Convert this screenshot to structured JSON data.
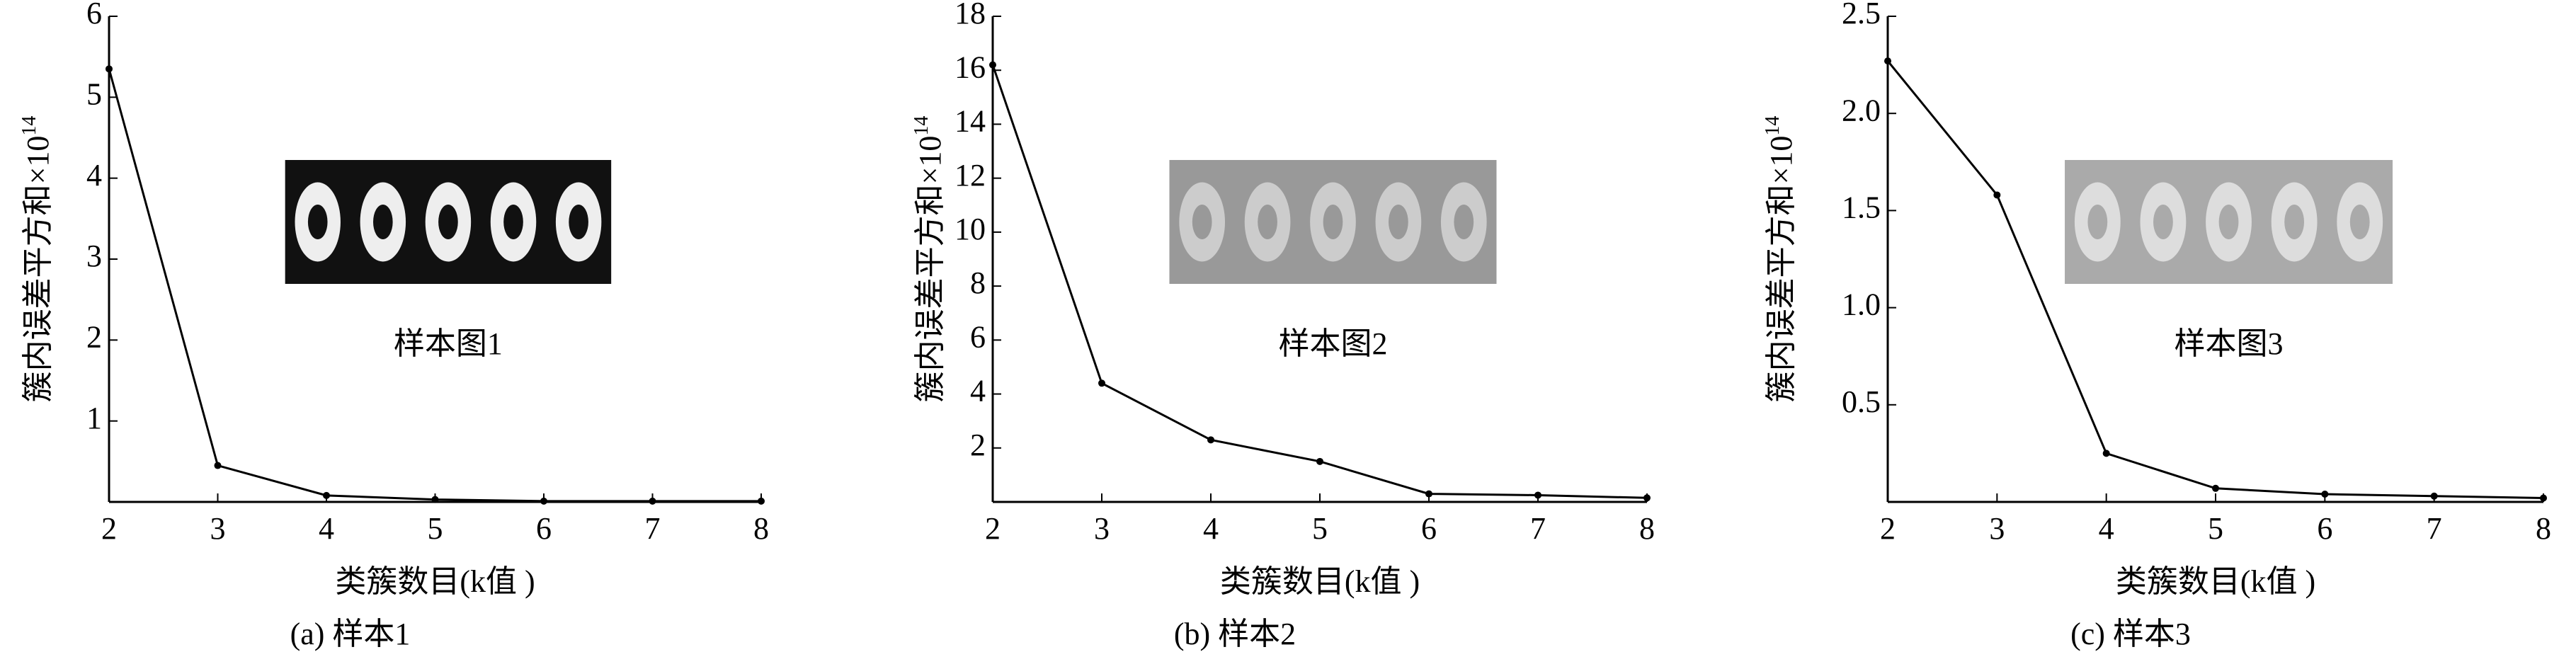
{
  "chart_data": [
    {
      "type": "line",
      "ylabel": "簇内误差平方和×10",
      "ylabel_exponent": "14",
      "xlabel": "类簇数目(k值 )",
      "caption": "(a) 样本1",
      "inset_label": "样本图1",
      "x": [
        2,
        3,
        4,
        5,
        6,
        7,
        8
      ],
      "values": [
        5.35,
        0.45,
        0.08,
        0.03,
        0.01,
        0.01,
        0.01
      ],
      "color": "#000000",
      "xlim": [
        2,
        8
      ],
      "xticks": [
        2,
        3,
        4,
        5,
        6,
        7,
        8
      ],
      "ylim": [
        0,
        6
      ],
      "yticks": [
        1,
        2,
        3,
        4,
        5,
        6
      ]
    },
    {
      "type": "line",
      "ylabel": "簇内误差平方和×10",
      "ylabel_exponent": "14",
      "xlabel": "类簇数目(k值 )",
      "caption": "(b) 样本2",
      "inset_label": "样本图2",
      "x": [
        2,
        3,
        4,
        5,
        6,
        7,
        8
      ],
      "values": [
        16.2,
        4.4,
        2.3,
        1.5,
        0.3,
        0.25,
        0.15
      ],
      "color": "#000000",
      "xlim": [
        2,
        8
      ],
      "xticks": [
        2,
        3,
        4,
        5,
        6,
        7,
        8
      ],
      "ylim": [
        0,
        18
      ],
      "yticks": [
        2,
        4,
        6,
        8,
        10,
        12,
        14,
        16,
        18
      ]
    },
    {
      "type": "line",
      "ylabel": "簇内误差平方和×10",
      "ylabel_exponent": "14",
      "xlabel": "类簇数目(k值 )",
      "caption": "(c) 样本3",
      "inset_label": "样本图3",
      "x": [
        2,
        3,
        4,
        5,
        6,
        7,
        8
      ],
      "values": [
        2.27,
        1.58,
        0.25,
        0.07,
        0.04,
        0.03,
        0.02
      ],
      "color": "#000000",
      "xlim": [
        2,
        8
      ],
      "xticks": [
        2,
        3,
        4,
        5,
        6,
        7,
        8
      ],
      "ylim": [
        0,
        2.5
      ],
      "yticks": [
        0.5,
        {
          "value": 1.0,
          "label": "1.0"
        },
        1.5,
        {
          "value": 2.0,
          "label": "2.0"
        },
        2.5
      ]
    }
  ]
}
